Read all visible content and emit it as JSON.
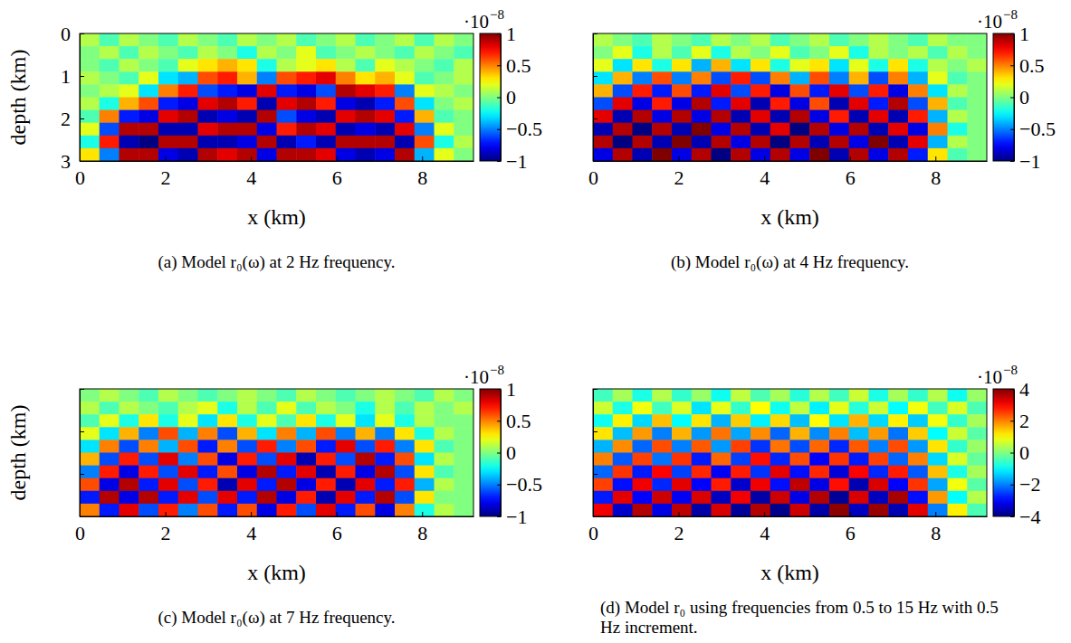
{
  "chart_data": [
    {
      "type": "heatmap",
      "title": "(a) Model r₀(ω) at 2 Hz frequency.",
      "xlabel": "x (km)",
      "ylabel": "depth (km)",
      "xlim": [
        0,
        9.2
      ],
      "ylim": [
        0,
        3
      ],
      "xticks": [
        0,
        2,
        4,
        6,
        8
      ],
      "yticks": [
        0,
        1,
        2,
        3
      ],
      "colorbar_lim": [
        -1,
        1
      ],
      "colorbar_ticks": [
        -1,
        -0.5,
        0,
        0.5,
        1
      ],
      "colorbar_multiplier": "·10",
      "colorbar_exponent": "−8",
      "cells": [
        [
          0.1,
          -0.1,
          0.1,
          0,
          -0.1,
          0.1,
          0,
          -0.1,
          0.1,
          0,
          0.1,
          -0.1,
          0,
          0.1,
          -0.1,
          0,
          0.1,
          -0.1,
          0.1,
          0
        ],
        [
          0,
          0.1,
          -0.1,
          0.1,
          0,
          -0.1,
          0.1,
          0,
          -0.2,
          0.1,
          0,
          0.2,
          -0.1,
          0,
          0.1,
          0,
          -0.1,
          0.1,
          0,
          -0.1
        ],
        [
          0,
          -0.1,
          0.1,
          0,
          -0.1,
          0.2,
          0.3,
          0.4,
          0.3,
          -0.2,
          0.1,
          0.2,
          0.3,
          0.1,
          -0.1,
          0.2,
          0.1,
          0,
          -0.1,
          0.1
        ],
        [
          0.1,
          0,
          -0.1,
          0.2,
          -0.3,
          -0.4,
          0.6,
          0.7,
          0.4,
          -0.5,
          0.6,
          0.7,
          0.8,
          0.5,
          0.3,
          0.4,
          0.2,
          -0.1,
          0,
          0.1
        ],
        [
          0,
          0.1,
          0.2,
          -0.3,
          0.5,
          0.7,
          -0.6,
          -0.7,
          -0.8,
          0.8,
          -0.7,
          -0.8,
          -0.6,
          0.9,
          0.8,
          0.7,
          -0.5,
          0.2,
          0.1,
          0
        ],
        [
          0.1,
          -0.2,
          0.4,
          0.6,
          -0.7,
          -0.8,
          0.8,
          0.9,
          0.7,
          -0.9,
          0.8,
          0.9,
          0.7,
          -0.8,
          -0.9,
          -0.7,
          0.6,
          -0.3,
          0,
          0.1
        ],
        [
          -0.1,
          0.5,
          -0.7,
          -0.8,
          0.8,
          0.9,
          -0.9,
          -0.8,
          -0.9,
          0.9,
          -0.6,
          -0.8,
          -0.9,
          0.8,
          0.9,
          0.8,
          -0.7,
          0.4,
          -0.1,
          0
        ],
        [
          0.2,
          -0.6,
          0.9,
          0.9,
          -0.9,
          -0.9,
          0.8,
          0.9,
          0.9,
          -0.8,
          0.7,
          0.9,
          0.8,
          -0.9,
          -0.8,
          -0.9,
          0.8,
          -0.5,
          0.2,
          0
        ],
        [
          -0.2,
          0.7,
          -0.9,
          -1,
          0.9,
          0.9,
          -0.9,
          -0.9,
          -0.8,
          0.9,
          -0.9,
          -0.7,
          -0.9,
          0.9,
          0.9,
          0.9,
          -0.9,
          0.6,
          -0.2,
          0.1
        ],
        [
          0.3,
          -0.5,
          0.9,
          0.9,
          -0.8,
          -0.9,
          0.9,
          0.8,
          0.9,
          -0.8,
          0.9,
          0.9,
          0.8,
          -0.8,
          -0.9,
          -0.8,
          0.9,
          -0.4,
          0.2,
          0
        ]
      ]
    },
    {
      "type": "heatmap",
      "title": "(b) Model r₀(ω) at 4 Hz frequency.",
      "xlabel": "x (km)",
      "xlim": [
        0,
        9.2
      ],
      "ylim": [
        0,
        3
      ],
      "xticks": [
        0,
        2,
        4,
        6,
        8
      ],
      "yticks": [
        0,
        1,
        2,
        3
      ],
      "tick_labels": "x",
      "colorbar_lim": [
        -1,
        1
      ],
      "colorbar_ticks": [
        -1,
        -0.5,
        0,
        0.5,
        1
      ],
      "colorbar_multiplier": "·10",
      "colorbar_exponent": "−8",
      "cells": [
        [
          0.1,
          0,
          -0.1,
          0.1,
          0,
          -0.1,
          0.1,
          0,
          0.1,
          -0.1,
          0,
          0.1,
          -0.1,
          0,
          0.1,
          0,
          -0.1,
          0.1,
          0,
          0
        ],
        [
          0,
          0.2,
          -0.2,
          0.1,
          -0.1,
          0.2,
          -0.2,
          0.1,
          0,
          0.2,
          -0.1,
          0,
          0.2,
          -0.2,
          0.1,
          0,
          0.1,
          -0.1,
          0.1,
          0
        ],
        [
          0.2,
          -0.3,
          0.3,
          -0.2,
          0.3,
          -0.4,
          0.4,
          -0.3,
          0.3,
          -0.2,
          0.2,
          0.3,
          -0.3,
          0.2,
          -0.2,
          0.3,
          -0.2,
          0.1,
          0,
          0.1
        ],
        [
          -0.3,
          0.4,
          -0.5,
          0.6,
          -0.5,
          0.5,
          -0.6,
          0.7,
          -0.6,
          0.5,
          -0.4,
          0.6,
          -0.5,
          0.4,
          -0.6,
          0.5,
          -0.4,
          0.2,
          -0.1,
          0
        ],
        [
          0.4,
          -0.6,
          0.7,
          -0.7,
          0.6,
          -0.7,
          0.8,
          -0.6,
          0.7,
          -0.8,
          0.6,
          -0.7,
          0.8,
          -0.6,
          0.7,
          -0.8,
          0.5,
          -0.3,
          0.1,
          0
        ],
        [
          -0.6,
          0.8,
          -0.8,
          0.7,
          -0.8,
          0.9,
          -0.7,
          0.8,
          -0.9,
          0.7,
          -0.8,
          0.6,
          -0.9,
          0.8,
          -0.7,
          0.9,
          -0.6,
          0.4,
          -0.1,
          0
        ],
        [
          0.8,
          -0.9,
          0.9,
          -0.8,
          0.9,
          -0.8,
          0.9,
          -0.9,
          0.8,
          -0.9,
          0.9,
          -0.8,
          0.7,
          -0.9,
          0.8,
          -0.9,
          0.7,
          -0.4,
          0.1,
          0
        ],
        [
          -0.9,
          0.9,
          -1,
          0.9,
          -0.9,
          1,
          -0.8,
          0.9,
          -0.9,
          0.8,
          -1,
          0.9,
          -0.8,
          0.9,
          -0.9,
          0.8,
          -0.8,
          0.5,
          -0.2,
          0
        ],
        [
          0.9,
          -1,
          0.9,
          -0.9,
          1,
          -0.9,
          0.9,
          -0.8,
          0.9,
          -1,
          0.9,
          -0.9,
          0.9,
          -0.8,
          1,
          -0.9,
          0.8,
          -0.4,
          0.1,
          0
        ],
        [
          -0.8,
          0.9,
          -0.9,
          1,
          -0.8,
          0.9,
          -1,
          0.9,
          -0.8,
          0.9,
          -0.8,
          1,
          -0.9,
          0.9,
          -0.8,
          0.9,
          -0.7,
          0.3,
          -0.1,
          0
        ]
      ]
    },
    {
      "type": "heatmap",
      "title": "(c) Model r₀(ω) at 7 Hz frequency.",
      "xlabel": "x (km)",
      "ylabel": "depth (km)",
      "xlim": [
        0,
        9.2
      ],
      "ylim": [
        0,
        3
      ],
      "xticks": [
        0,
        2,
        4,
        6,
        8
      ],
      "yticks": [
        0,
        1,
        2,
        3
      ],
      "tick_labels": "x",
      "colorbar_lim": [
        -1,
        1
      ],
      "colorbar_ticks": [
        -1,
        -0.5,
        0,
        0.5,
        1
      ],
      "colorbar_multiplier": "·10",
      "colorbar_exponent": "−8",
      "cells": [
        [
          0,
          0.1,
          0,
          -0.1,
          0.1,
          0,
          -0.1,
          0,
          0.1,
          0,
          -0.1,
          0.1,
          0,
          -0.1,
          0,
          0.1,
          0,
          -0.1,
          0.1,
          0
        ],
        [
          0.1,
          -0.1,
          0.1,
          0,
          -0.1,
          0.1,
          0.2,
          -0.2,
          0.1,
          -0.1,
          0.2,
          -0.1,
          0.1,
          0,
          -0.2,
          0.1,
          -0.1,
          0.1,
          0,
          0.1
        ],
        [
          -0.1,
          0.2,
          -0.2,
          0.3,
          -0.2,
          0.2,
          -0.3,
          0.3,
          -0.2,
          0.2,
          -0.1,
          0.3,
          -0.2,
          0.2,
          -0.3,
          0.2,
          -0.2,
          0.1,
          0,
          0
        ],
        [
          0.2,
          -0.3,
          0.4,
          -0.5,
          0.6,
          -0.4,
          0.5,
          -0.6,
          0.4,
          -0.3,
          0.5,
          -0.4,
          0.6,
          -0.5,
          0.4,
          -0.5,
          0.3,
          -0.2,
          0.1,
          0
        ],
        [
          -0.3,
          0.5,
          -0.6,
          0.5,
          -0.4,
          0.6,
          -0.7,
          0.5,
          -0.6,
          0.7,
          -0.5,
          0.6,
          -0.7,
          0.8,
          -0.6,
          0.7,
          -0.5,
          0.3,
          -0.1,
          0
        ],
        [
          0.4,
          -0.6,
          0.7,
          -0.6,
          0.8,
          -0.5,
          0.6,
          -0.8,
          0.7,
          -0.6,
          0.8,
          -0.9,
          0.7,
          -0.6,
          0.9,
          -0.7,
          0.6,
          -0.3,
          0.1,
          0
        ],
        [
          -0.5,
          0.7,
          -0.8,
          0.7,
          -0.6,
          0.8,
          -0.7,
          0.6,
          -0.8,
          0.9,
          -0.7,
          0.8,
          -0.9,
          0.7,
          -0.8,
          0.9,
          -0.6,
          0.3,
          -0.1,
          0
        ],
        [
          0.6,
          -0.8,
          0.9,
          -0.7,
          0.8,
          -0.6,
          0.7,
          -0.9,
          0.8,
          -0.7,
          0.9,
          -0.8,
          0.7,
          -0.9,
          0.8,
          -0.7,
          0.7,
          -0.4,
          0.1,
          0
        ],
        [
          -0.7,
          0.9,
          -0.8,
          0.9,
          -0.7,
          0.8,
          -0.6,
          0.8,
          -0.7,
          0.9,
          -0.8,
          0.7,
          -0.9,
          0.8,
          -0.7,
          0.9,
          -0.6,
          0.3,
          0,
          0
        ],
        [
          0.5,
          -0.7,
          0.8,
          -0.6,
          0.7,
          -0.5,
          0.6,
          -0.7,
          0.6,
          -0.8,
          0.7,
          -0.6,
          0.8,
          -0.7,
          0.6,
          -0.8,
          0.5,
          -0.2,
          0.1,
          0
        ]
      ]
    },
    {
      "type": "heatmap",
      "title": "(d) Model r₀ using frequencies from 0.5 to 15 Hz with 0.5 Hz increment.",
      "xlabel": "x (km)",
      "xlim": [
        0,
        9.2
      ],
      "ylim": [
        0,
        3
      ],
      "xticks": [
        0,
        2,
        4,
        6,
        8
      ],
      "yticks": [
        0,
        1,
        2,
        3
      ],
      "tick_labels": "x",
      "colorbar_lim": [
        -4,
        4
      ],
      "colorbar_ticks": [
        -4,
        -2,
        0,
        2,
        4
      ],
      "colorbar_multiplier": "·10",
      "colorbar_exponent": "−8",
      "cells": [
        [
          -0.5,
          0.3,
          -0.8,
          0.4,
          -0.6,
          0.2,
          -0.9,
          0.5,
          -0.4,
          0.3,
          -0.7,
          0.4,
          -0.5,
          0.6,
          -0.8,
          0.3,
          -0.6,
          0.4,
          -0.9,
          0.2
        ],
        [
          0.6,
          -0.8,
          0.9,
          -0.5,
          0.7,
          -1.2,
          0.8,
          -0.6,
          1,
          -0.9,
          0.5,
          -1.1,
          0.8,
          -0.7,
          0.6,
          -1,
          0.9,
          -0.5,
          0.7,
          -0.4
        ],
        [
          -0.9,
          1.1,
          -1.3,
          1.5,
          -1,
          1.2,
          -1.6,
          1.4,
          -1.1,
          1.3,
          -1.5,
          1,
          -1.2,
          1.6,
          -1.3,
          1.1,
          -1.4,
          0.9,
          -0.6,
          0.3
        ],
        [
          1.2,
          -1.5,
          1.8,
          -2,
          1.6,
          -1.8,
          2.1,
          -1.7,
          1.9,
          -2.2,
          1.6,
          -1.9,
          2,
          -1.5,
          1.8,
          -2.1,
          1.4,
          -1,
          0.6,
          -0.3
        ],
        [
          -1.6,
          1.9,
          -2.2,
          2.4,
          -2,
          2.3,
          -1.8,
          2.5,
          -2.6,
          2.1,
          -2.4,
          2.2,
          -2.7,
          2.3,
          -2,
          2.4,
          -1.8,
          1.2,
          -0.6,
          0.2
        ],
        [
          2,
          -2.3,
          2.5,
          -2.1,
          2.6,
          -2.8,
          2.2,
          -2.5,
          2.9,
          -2.7,
          2.4,
          -3,
          2.6,
          -2.8,
          2.5,
          -2.2,
          2,
          -1.3,
          0.7,
          -0.2
        ],
        [
          -2.2,
          2.6,
          -2.8,
          3,
          -2.5,
          2.7,
          -3.1,
          2.8,
          -2.6,
          3.2,
          -2.9,
          2.7,
          -3.3,
          3,
          -2.7,
          2.8,
          -2.3,
          1.5,
          -0.8,
          0.3
        ],
        [
          2.5,
          -2.9,
          3.1,
          -2.7,
          3.2,
          -3,
          2.8,
          -3.4,
          3.1,
          -2.9,
          3.5,
          -3.2,
          2.9,
          -3.6,
          3.3,
          -3,
          2.6,
          -1.7,
          0.9,
          -0.3
        ],
        [
          -2.8,
          3.2,
          -3,
          3.4,
          -3.1,
          3.3,
          -3.5,
          3.1,
          -3.7,
          3.4,
          -3.2,
          3.6,
          -3.8,
          3.3,
          -3.5,
          3.7,
          -2.9,
          1.8,
          -1,
          0.4
        ],
        [
          3.1,
          -3.4,
          3.6,
          -3.2,
          3.5,
          -3.7,
          3.3,
          -3.8,
          3.6,
          -3.9,
          3.4,
          -3.7,
          3.9,
          -3.5,
          3.8,
          -3.6,
          3.2,
          -2,
          1.1,
          -0.4
        ]
      ]
    }
  ]
}
